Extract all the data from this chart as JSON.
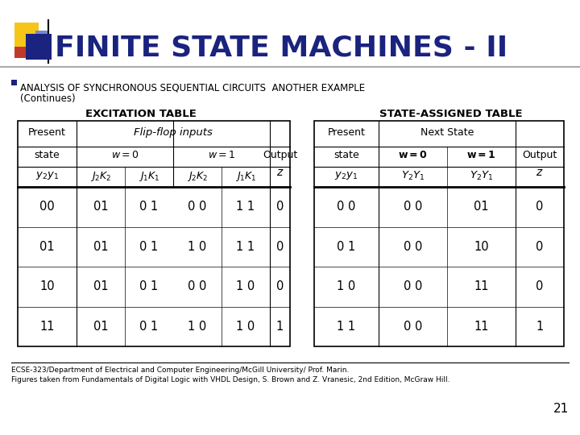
{
  "title": "FINITE STATE MACHINES - II",
  "title_color": "#1a237e",
  "bg_color": "#ffffff",
  "bullet_line1": "ANALYSIS OF SYNCHRONOUS SEQUENTIAL CIRCUITS  ANOTHER EXAMPLE",
  "bullet_line2": "(Continues)",
  "excitation_title": "EXCITATION TABLE",
  "state_assigned_title": "STATE-ASSIGNED TABLE",
  "footer_line1": "ECSE-323/Department of Electrical and Computer Engineering/McGill University/ Prof. Marin.",
  "footer_line2": "Figures taken from Fundamentals of Digital Logic with VHDL Design, S. Brown and Z. Vranesic, 2nd Edition, McGraw Hill.",
  "page_number": "21",
  "exc_rows": [
    [
      "00",
      "01",
      "0 1",
      "0 0",
      "1 1",
      "0"
    ],
    [
      "01",
      "01",
      "0 1",
      "1 0",
      "1 1",
      "0"
    ],
    [
      "10",
      "01",
      "0 1",
      "0 0",
      "1 0",
      "0"
    ],
    [
      "11",
      "01",
      "0 1",
      "1 0",
      "1 0",
      "1"
    ]
  ],
  "sa_rows": [
    [
      "0 0",
      "0 0",
      "01",
      "0"
    ],
    [
      "0 1",
      "0 0",
      "10",
      "0"
    ],
    [
      "1 0",
      "0 0",
      "11",
      "0"
    ],
    [
      "1 1",
      "0 0",
      "11",
      "1"
    ]
  ]
}
